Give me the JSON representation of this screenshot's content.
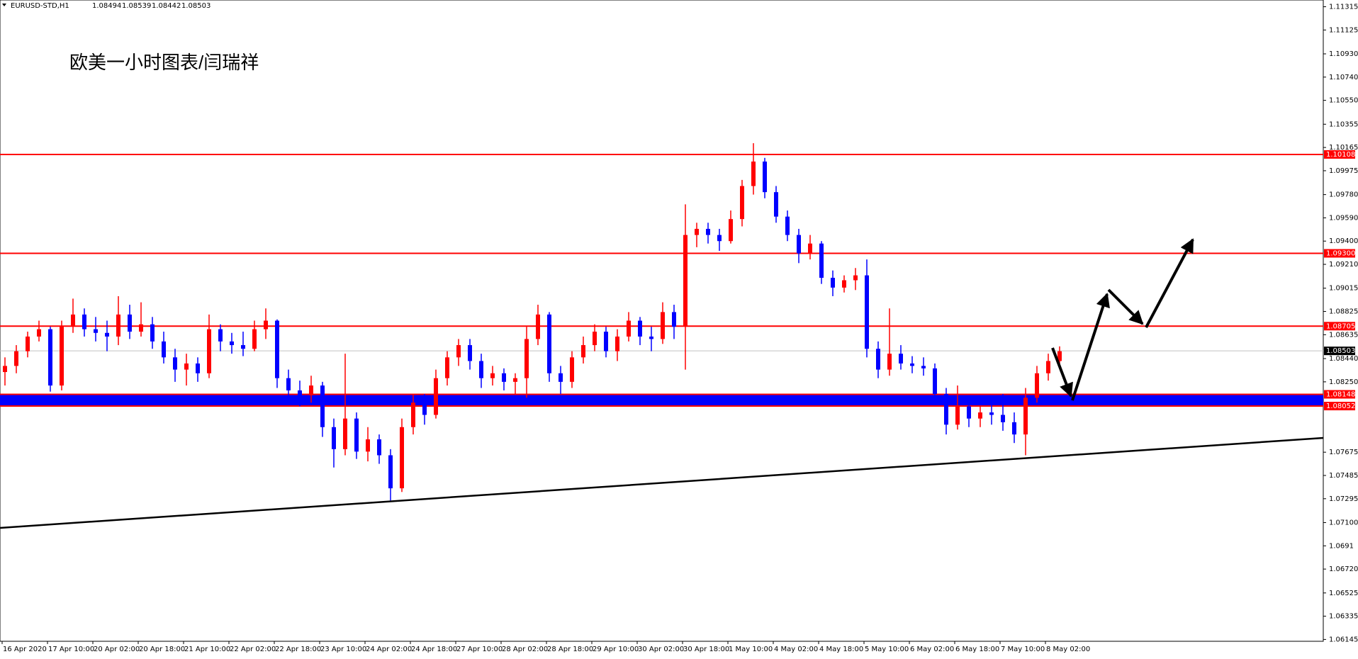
{
  "chart_data": {
    "type": "candlestick",
    "symbol": "EURUSD-STD,H1",
    "header_ohlc": [
      1.08494,
      1.08539,
      1.08442,
      1.08503
    ],
    "title": "欧美一小时图表/闫瑞祥",
    "up_color": "#ff0000",
    "down_color": "#0000ff",
    "categories": [
      "16 Apr 2020",
      null,
      null,
      null,
      "17 Apr 10:00",
      null,
      null,
      null,
      "20 Apr 02:00",
      null,
      null,
      null,
      "20 Apr 18:00",
      null,
      null,
      null,
      "21 Apr 10:00",
      null,
      null,
      null,
      "22 Apr 02:00",
      null,
      null,
      null,
      "22 Apr 18:00",
      null,
      null,
      null,
      "23 Apr 10:00",
      null,
      null,
      null,
      "24 Apr 02:00",
      null,
      null,
      null,
      "24 Apr 18:00",
      null,
      null,
      null,
      "27 Apr 10:00",
      null,
      null,
      null,
      "28 Apr 02:00",
      null,
      null,
      null,
      "28 Apr 18:00",
      null,
      null,
      null,
      "29 Apr 10:00",
      null,
      null,
      null,
      "30 Apr 02:00",
      null,
      null,
      null,
      "30 Apr 18:00",
      null,
      null,
      null,
      "1 May 10:00",
      null,
      null,
      null,
      "4 May 02:00",
      null,
      null,
      null,
      "4 May 18:00",
      null,
      null,
      null,
      "5 May 10:00",
      null,
      null,
      null,
      "6 May 02:00",
      null,
      null,
      null,
      "6 May 18:00",
      null,
      null,
      null,
      "7 May 10:00",
      null,
      null,
      null,
      "8 May 02:00",
      null
    ],
    "candles": [
      [
        1.0833,
        1.0845,
        1.0822,
        1.0838
      ],
      [
        1.0838,
        1.0855,
        1.0832,
        1.085
      ],
      [
        1.085,
        1.0866,
        1.0845,
        1.0862
      ],
      [
        1.0862,
        1.0875,
        1.0858,
        1.0868
      ],
      [
        1.0868,
        1.087,
        1.0817,
        1.0822
      ],
      [
        1.0822,
        1.0875,
        1.0818,
        1.087
      ],
      [
        1.087,
        1.0893,
        1.0865,
        1.088
      ],
      [
        1.088,
        1.0885,
        1.0862,
        1.0868
      ],
      [
        1.0868,
        1.0878,
        1.0858,
        1.0865
      ],
      [
        1.0865,
        1.0875,
        1.085,
        1.0862
      ],
      [
        1.0862,
        1.0895,
        1.0855,
        1.088
      ],
      [
        1.088,
        1.0888,
        1.086,
        1.0866
      ],
      [
        1.0866,
        1.089,
        1.0862,
        1.0872
      ],
      [
        1.0872,
        1.0878,
        1.0852,
        1.0858
      ],
      [
        1.0858,
        1.0866,
        1.084,
        1.0845
      ],
      [
        1.0845,
        1.0852,
        1.0825,
        1.0835
      ],
      [
        1.0835,
        1.0848,
        1.0822,
        1.084
      ],
      [
        1.084,
        1.0845,
        1.0825,
        1.0832
      ],
      [
        1.0832,
        1.088,
        1.0828,
        1.0868
      ],
      [
        1.0868,
        1.0872,
        1.085,
        1.0858
      ],
      [
        1.0858,
        1.0865,
        1.0848,
        1.0855
      ],
      [
        1.0855,
        1.0866,
        1.0846,
        1.0852
      ],
      [
        1.0852,
        1.0875,
        1.085,
        1.0868
      ],
      [
        1.0868,
        1.0885,
        1.086,
        1.0875
      ],
      [
        1.0875,
        1.0876,
        1.082,
        1.0828
      ],
      [
        1.0828,
        1.0835,
        1.0808,
        1.0818
      ],
      [
        1.0818,
        1.0826,
        1.0805,
        1.0814
      ],
      [
        1.0814,
        1.083,
        1.0808,
        1.0822
      ],
      [
        1.0822,
        1.0825,
        1.078,
        1.0788
      ],
      [
        1.0788,
        1.0795,
        1.0755,
        1.077
      ],
      [
        1.077,
        1.0848,
        1.0765,
        1.0795
      ],
      [
        1.0795,
        1.08,
        1.0762,
        1.0768
      ],
      [
        1.0768,
        1.0788,
        1.076,
        1.0778
      ],
      [
        1.0778,
        1.0782,
        1.0758,
        1.0765
      ],
      [
        1.0765,
        1.077,
        1.0728,
        1.0738
      ],
      [
        1.0738,
        1.0795,
        1.0735,
        1.0788
      ],
      [
        1.0788,
        1.0815,
        1.0782,
        1.0808
      ],
      [
        1.0808,
        1.0815,
        1.079,
        1.0798
      ],
      [
        1.0798,
        1.0835,
        1.0795,
        1.0828
      ],
      [
        1.0828,
        1.085,
        1.0822,
        1.0845
      ],
      [
        1.0845,
        1.086,
        1.0838,
        1.0855
      ],
      [
        1.0855,
        1.086,
        1.0835,
        1.0842
      ],
      [
        1.0842,
        1.0848,
        1.082,
        1.0828
      ],
      [
        1.0828,
        1.0838,
        1.0822,
        1.0832
      ],
      [
        1.0832,
        1.0836,
        1.0818,
        1.0825
      ],
      [
        1.0825,
        1.0832,
        1.0815,
        1.0828
      ],
      [
        1.0828,
        1.087,
        1.0812,
        1.086
      ],
      [
        1.086,
        1.0888,
        1.0855,
        1.088
      ],
      [
        1.088,
        1.0882,
        1.0825,
        1.0832
      ],
      [
        1.0832,
        1.0838,
        1.0815,
        1.0825
      ],
      [
        1.0825,
        1.085,
        1.082,
        1.0845
      ],
      [
        1.0845,
        1.0862,
        1.084,
        1.0855
      ],
      [
        1.0855,
        1.0872,
        1.085,
        1.0866
      ],
      [
        1.0866,
        1.087,
        1.0845,
        1.085
      ],
      [
        1.085,
        1.0868,
        1.0842,
        1.0862
      ],
      [
        1.0862,
        1.0882,
        1.0858,
        1.0875
      ],
      [
        1.0875,
        1.0878,
        1.0855,
        1.0862
      ],
      [
        1.0862,
        1.087,
        1.085,
        1.086
      ],
      [
        1.086,
        1.089,
        1.0856,
        1.0882
      ],
      [
        1.0882,
        1.0888,
        1.086,
        1.087
      ],
      [
        1.087,
        1.097,
        1.0835,
        1.0945
      ],
      [
        1.0945,
        1.0955,
        1.0935,
        1.095
      ],
      [
        1.095,
        1.0955,
        1.0938,
        1.0945
      ],
      [
        1.0945,
        1.095,
        1.0932,
        1.094
      ],
      [
        1.094,
        1.0965,
        1.0938,
        1.0958
      ],
      [
        1.0958,
        1.099,
        1.0952,
        1.0985
      ],
      [
        1.0985,
        1.102,
        1.0978,
        1.1005
      ],
      [
        1.1005,
        1.1008,
        1.0975,
        1.098
      ],
      [
        1.098,
        1.0985,
        1.0955,
        1.096
      ],
      [
        1.096,
        1.0965,
        1.094,
        1.0945
      ],
      [
        1.0945,
        1.095,
        1.0922,
        1.093
      ],
      [
        1.093,
        1.0945,
        1.0925,
        1.0938
      ],
      [
        1.0938,
        1.094,
        1.0905,
        1.091
      ],
      [
        1.091,
        1.0916,
        1.0895,
        1.0902
      ],
      [
        1.0902,
        1.0912,
        1.0898,
        1.0908
      ],
      [
        1.0908,
        1.0918,
        1.09,
        1.0912
      ],
      [
        1.0912,
        1.0925,
        1.0845,
        1.0852
      ],
      [
        1.0852,
        1.0858,
        1.0828,
        1.0835
      ],
      [
        1.0835,
        1.0885,
        1.083,
        1.0848
      ],
      [
        1.0848,
        1.0855,
        1.0835,
        1.084
      ],
      [
        1.084,
        1.0846,
        1.0832,
        1.0838
      ],
      [
        1.0838,
        1.0845,
        1.083,
        1.0836
      ],
      [
        1.0836,
        1.084,
        1.0808,
        1.0815
      ],
      [
        1.0815,
        1.082,
        1.0782,
        1.079
      ],
      [
        1.079,
        1.0822,
        1.0786,
        1.0805
      ],
      [
        1.0805,
        1.0812,
        1.0788,
        1.0795
      ],
      [
        1.0795,
        1.0805,
        1.0788,
        1.08
      ],
      [
        1.08,
        1.0806,
        1.079,
        1.0798
      ],
      [
        1.0798,
        1.0815,
        1.0785,
        1.0792
      ],
      [
        1.0792,
        1.08,
        1.0775,
        1.0782
      ],
      [
        1.0782,
        1.082,
        1.0765,
        1.0812
      ],
      [
        1.0812,
        1.0838,
        1.0808,
        1.0832
      ],
      [
        1.0832,
        1.0848,
        1.0826,
        1.0842
      ],
      [
        1.0842,
        1.0854,
        1.0838,
        1.085
      ]
    ],
    "ylim": [
      1.0613,
      1.1137
    ],
    "yticks": [
      1.11315,
      1.11125,
      {
        "value": 1.1093,
        "label": "1.10930"
      },
      {
        "value": 1.1074,
        "label": "1.10740"
      },
      {
        "value": 1.1055,
        "label": "1.10550"
      },
      1.10355,
      1.10165,
      1.09975,
      {
        "value": 1.0978,
        "label": "1.09780"
      },
      {
        "value": 1.0959,
        "label": "1.09590"
      },
      {
        "value": 1.094,
        "label": "1.09400"
      },
      {
        "value": 1.0921,
        "label": "1.09210"
      },
      1.09015,
      1.08825,
      1.08635,
      {
        "value": 1.0844,
        "label": "1.08440"
      },
      {
        "value": 1.0825,
        "label": "1.08250"
      },
      1.07675,
      1.07485,
      1.07295,
      {
        "value": 1.071,
        "label": "1.07100"
      },
      1.0691,
      {
        "value": 1.0672,
        "label": "1.06720"
      },
      1.06525,
      1.06335,
      1.06145
    ],
    "hlines": [
      {
        "value": 1.10108,
        "label": "1.10108"
      },
      {
        "value": 1.093,
        "label": "1.09300"
      },
      {
        "value": 1.08705,
        "label": "1.08705"
      },
      {
        "value": 1.08148,
        "label": "1.08148"
      },
      {
        "value": 1.08052,
        "label": "1.08052"
      }
    ],
    "hline_color": "#ff0000",
    "band_color": "#0000ff",
    "last_price": {
      "value": 1.08503,
      "label": "1.08503"
    }
  }
}
